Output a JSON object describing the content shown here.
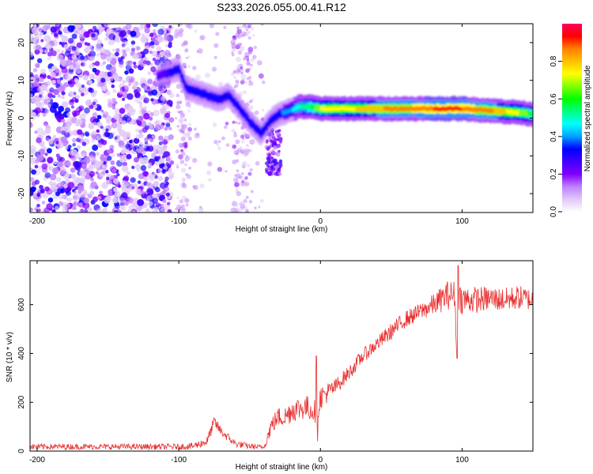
{
  "title": "S233.2026.055.00.41.R12",
  "chart_data": [
    {
      "type": "heatmap",
      "name": "spectrogram",
      "xlabel": "Height of straight line (km)",
      "ylabel": "Frequency (Hz)",
      "xlim": [
        -205,
        150
      ],
      "ylim": [
        -25,
        25
      ],
      "xticks": [
        -200,
        -100,
        0,
        100
      ],
      "yticks": [
        -20,
        -10,
        0,
        10,
        20
      ],
      "colorbar": {
        "label": "Normalized spectral amplitude",
        "range": [
          0,
          1
        ],
        "ticks": [
          "0.0",
          "0.2",
          "0.4",
          "0.6",
          "0.8"
        ],
        "colors": [
          "#ffffff",
          "#e0c8f8",
          "#c080ff",
          "#8000ff",
          "#4000ff",
          "#0000ff",
          "#00a0ff",
          "#00ffff",
          "#00ff80",
          "#00ff00",
          "#80ff00",
          "#ffff00",
          "#ffc000",
          "#ff8000",
          "#ff0000",
          "#ff0060"
        ]
      },
      "ridge_frequency_hz": {
        "x": [
          -115,
          -100,
          -95,
          -88,
          -80,
          -72,
          -65,
          -58,
          -50,
          -42,
          -36,
          -30,
          -22,
          -15,
          -8,
          0,
          20,
          50,
          80,
          100,
          120,
          140,
          150
        ],
        "y": [
          11,
          13,
          8,
          7,
          6,
          5,
          6,
          3,
          -1,
          -4,
          -1,
          1,
          2,
          3,
          3,
          2.5,
          2.5,
          2.5,
          2.5,
          2.5,
          2,
          1.5,
          1
        ],
        "amplitude": [
          0.25,
          0.35,
          0.3,
          0.3,
          0.3,
          0.3,
          0.3,
          0.3,
          0.3,
          0.35,
          0.35,
          0.35,
          0.4,
          0.5,
          0.55,
          0.7,
          0.75,
          0.85,
          0.9,
          0.9,
          0.85,
          0.7,
          0.6
        ]
      },
      "noise_region_x": [
        -205,
        -105
      ]
    },
    {
      "type": "line",
      "name": "snr",
      "xlabel": "Height of straight line (km)",
      "ylabel": "SNR (10 * v/v)",
      "xlim": [
        -205,
        150
      ],
      "ylim": [
        0,
        780
      ],
      "xticks": [
        -200,
        -100,
        0,
        100
      ],
      "yticks": [
        0,
        200,
        400,
        600
      ],
      "color": "#e83030",
      "series": [
        {
          "name": "SNR",
          "x": [
            -205,
            -150,
            -100,
            -90,
            -80,
            -75,
            -70,
            -60,
            -50,
            -40,
            -35,
            -30,
            -25,
            -20,
            -10,
            -2,
            0,
            10,
            20,
            30,
            40,
            50,
            60,
            70,
            80,
            90,
            95,
            96,
            97,
            100,
            110,
            120,
            130,
            140,
            150
          ],
          "y": [
            18,
            18,
            18,
            20,
            40,
            120,
            80,
            30,
            20,
            15,
            100,
            140,
            140,
            170,
            180,
            160,
            220,
            260,
            320,
            390,
            440,
            490,
            540,
            570,
            600,
            640,
            640,
            420,
            640,
            620,
            620,
            625,
            620,
            630,
            620
          ],
          "noise_amplitude": [
            12,
            12,
            12,
            14,
            20,
            25,
            20,
            15,
            12,
            10,
            40,
            40,
            45,
            50,
            50,
            50,
            50,
            35,
            30,
            30,
            30,
            35,
            35,
            35,
            45,
            60,
            60,
            0,
            60,
            60,
            55,
            50,
            50,
            50,
            45
          ]
        }
      ]
    }
  ]
}
